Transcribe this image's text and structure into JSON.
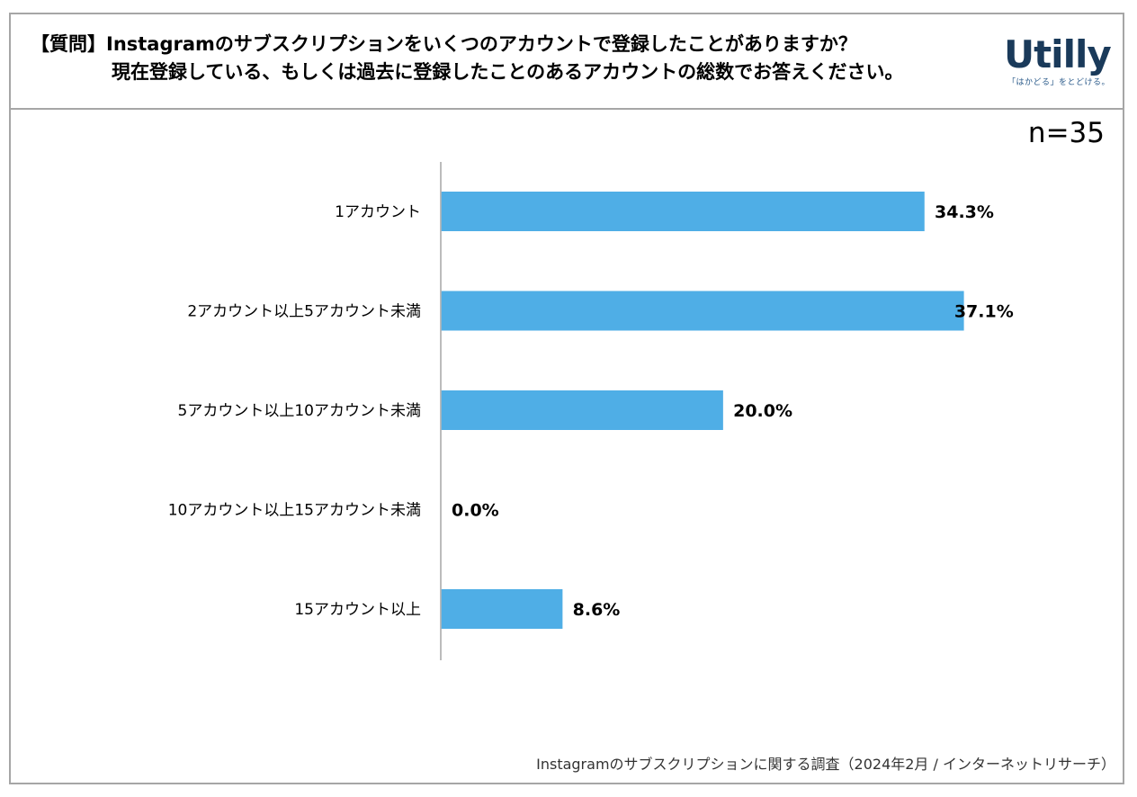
{
  "header": {
    "question_line1": "【質問】Instagramのサブスクリプションをいくつのアカウントで登録したことがありますか？",
    "question_line2": "現在登録している、もしくは過去に登録したことのあるアカウントの総数でお答えください。"
  },
  "logo": {
    "text": "Utilly",
    "tagline": "「はかどる」をとどける。"
  },
  "sample_label": "n=35",
  "footer": {
    "source": "Instagramのサブスクリプションに関する調査（2024年2月 / インターネットリサーチ）"
  },
  "colors": {
    "bar": "#4faee6",
    "axis": "#a6a6a6",
    "border": "#a6a6a6"
  },
  "chart_data": {
    "type": "bar",
    "orientation": "horizontal",
    "categories": [
      "1アカウント",
      "2アカウント以上5アカウント未満",
      "5アカウント以上10アカウント未満",
      "10アカウント以上15アカウント未満",
      "15アカウント以上"
    ],
    "values": [
      34.3,
      37.1,
      20.0,
      0.0,
      8.6
    ],
    "value_labels": [
      "34.3%",
      "37.1%",
      "20.0%",
      "0.0%",
      "8.6%"
    ],
    "unit": "%",
    "xlim": [
      0,
      40
    ],
    "grid": false,
    "legend": "none"
  }
}
